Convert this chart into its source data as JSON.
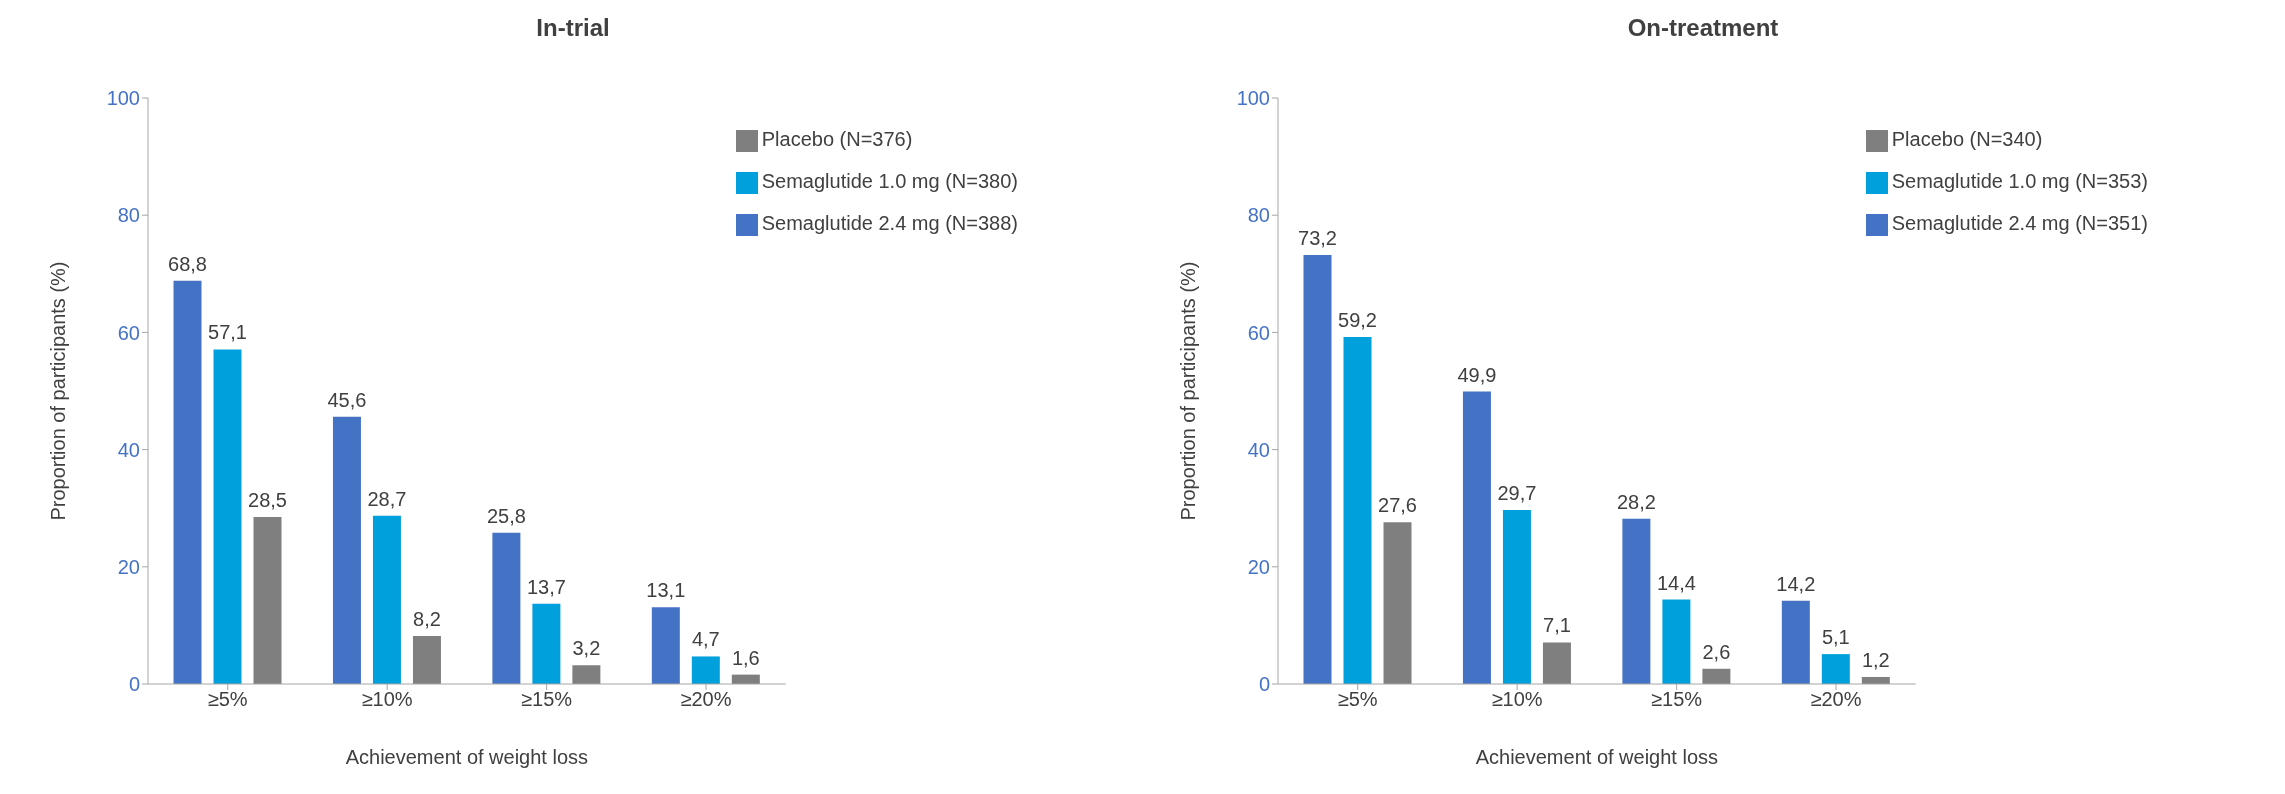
{
  "chart_data": [
    {
      "type": "bar",
      "title": "In-trial",
      "xlabel": "Achievement of weight loss",
      "ylabel": "Proportion of participants (%)",
      "categories": [
        "≥5%",
        "≥10%",
        "≥15%",
        "≥20%"
      ],
      "ylim": [
        0,
        100
      ],
      "yticks": [
        0,
        20,
        40,
        60,
        80,
        100
      ],
      "grid": false,
      "legend": "top right",
      "series": [
        {
          "name": "Semaglutide 2.4 mg (N=388)",
          "color": "#4472c4",
          "values": [
            68.8,
            45.6,
            25.8,
            13.1
          ],
          "value_labels": [
            "68,8",
            "45,6",
            "25,8",
            "13,1"
          ]
        },
        {
          "name": "Semaglutide 1.0 mg (N=380)",
          "color": "#00a0dc",
          "values": [
            57.1,
            28.7,
            13.7,
            4.7
          ],
          "value_labels": [
            "57,1",
            "28,7",
            "13,7",
            "4,7"
          ]
        },
        {
          "name": "Placebo (N=376)",
          "color": "#7f7f7f",
          "values": [
            28.5,
            8.2,
            3.2,
            1.6
          ],
          "value_labels": [
            "28,5",
            "8,2",
            "3,2",
            "1,6"
          ]
        }
      ]
    },
    {
      "type": "bar",
      "title": "On-treatment",
      "xlabel": "Achievement of weight loss",
      "ylabel": "Proportion of participants (%)",
      "categories": [
        "≥5%",
        "≥10%",
        "≥15%",
        "≥20%"
      ],
      "ylim": [
        0,
        100
      ],
      "yticks": [
        0,
        20,
        40,
        60,
        80,
        100
      ],
      "grid": false,
      "legend": "top right",
      "series": [
        {
          "name": "Semaglutide 2.4 mg (N=351)",
          "color": "#4472c4",
          "values": [
            73.2,
            49.9,
            28.2,
            14.2
          ],
          "value_labels": [
            "73,2",
            "49,9",
            "28,2",
            "14,2"
          ]
        },
        {
          "name": "Semaglutide 1.0 mg (N=353)",
          "color": "#00a0dc",
          "values": [
            59.2,
            29.7,
            14.4,
            5.1
          ],
          "value_labels": [
            "59,2",
            "29,7",
            "14,4",
            "5,1"
          ]
        },
        {
          "name": "Placebo (N=340)",
          "color": "#7f7f7f",
          "values": [
            27.6,
            7.1,
            2.6,
            1.2
          ],
          "value_labels": [
            "27,6",
            "7,1",
            "2,6",
            "1,2"
          ]
        }
      ]
    }
  ]
}
